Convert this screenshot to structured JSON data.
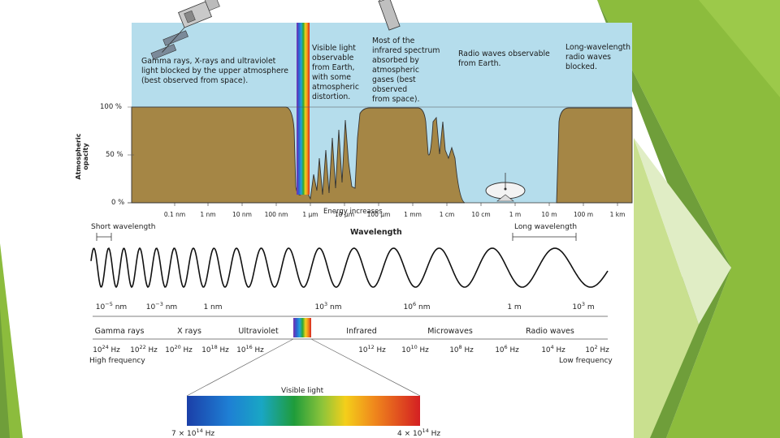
{
  "colors": {
    "sky": "#b5ddec",
    "ground": "#a58645",
    "green_dark": "#6f9e3a",
    "green_mid": "#8cbc3d",
    "green_light": "#c9e08f",
    "green_pale": "#e0edc5"
  },
  "opacity_panel": {
    "y_axis_label": "Atmospheric opacity",
    "y_ticks": [
      "100 %",
      "50 %",
      "0 %"
    ],
    "annotations": {
      "gamma": "Gamma rays, X-rays and ultraviolet\nlight blocked by the upper atmosphere\n(best observed from space).",
      "visible": "Visible light\nobservable\nfrom Earth,\nwith some\natmospheric\ndistortion.",
      "infrared": "Most of the\ninfrared spectrum\nabsorbed by\natmospheric\ngases (best\nobserved\nfrom space).",
      "radio": "Radio waves observable\nfrom Earth.",
      "long": "Long-wavelength\nradio waves\nblocked."
    },
    "x_ticks": [
      "0.1 nm",
      "1 nm",
      "10 nm",
      "100 nm",
      "1 µm",
      "10 µm",
      "100 µm",
      "1 mm",
      "1 cm",
      "10 cm",
      "1 m",
      "10 m",
      "100 m",
      "1 km"
    ],
    "energy_label": "Energy increases",
    "icons": [
      "satellite-icon",
      "telescope-icon",
      "radio-dish-icon"
    ]
  },
  "spectrum_panel": {
    "title": "Wavelength",
    "short_label": "Short wavelength",
    "long_label": "Long wavelength",
    "wavelength_marks": [
      {
        "base": "10",
        "exp": "−5",
        "unit": " nm"
      },
      {
        "base": "10",
        "exp": "−3",
        "unit": " nm"
      },
      {
        "base": "1",
        "exp": "",
        "unit": " nm"
      },
      {
        "base": "10",
        "exp": "3",
        "unit": " nm"
      },
      {
        "base": "10",
        "exp": "6",
        "unit": " nm"
      },
      {
        "base": "1",
        "exp": "",
        "unit": " m"
      },
      {
        "base": "10",
        "exp": "3",
        "unit": " m"
      }
    ],
    "bands": [
      "Gamma rays",
      "X rays",
      "Ultraviolet",
      "Infrared",
      "Microwaves",
      "Radio waves"
    ],
    "frequencies": [
      {
        "base": "10",
        "exp": "24",
        "unit": " Hz"
      },
      {
        "base": "10",
        "exp": "22",
        "unit": " Hz"
      },
      {
        "base": "10",
        "exp": "20",
        "unit": " Hz"
      },
      {
        "base": "10",
        "exp": "18",
        "unit": " Hz"
      },
      {
        "base": "10",
        "exp": "16",
        "unit": " Hz"
      },
      {
        "base": "10",
        "exp": "12",
        "unit": " Hz"
      },
      {
        "base": "10",
        "exp": "10",
        "unit": " Hz"
      },
      {
        "base": "10",
        "exp": "8",
        "unit": " Hz"
      },
      {
        "base": "10",
        "exp": "6",
        "unit": " Hz"
      },
      {
        "base": "10",
        "exp": "4",
        "unit": " Hz"
      },
      {
        "base": "10",
        "exp": "2",
        "unit": " Hz"
      }
    ],
    "high_label": "High frequency",
    "low_label": "Low frequency",
    "visible_label": "Visible light",
    "visible_left": {
      "pre": "7 × 10",
      "exp": "14",
      "unit": " Hz"
    },
    "visible_right": {
      "pre": "4 × 10",
      "exp": "14",
      "unit": " Hz"
    }
  }
}
